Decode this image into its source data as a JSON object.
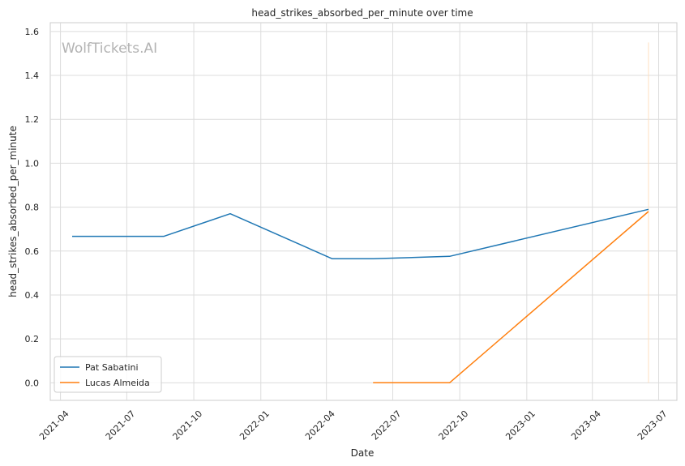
{
  "chart_data": {
    "type": "line",
    "title": "head_strikes_absorbed_per_minute over time",
    "xlabel": "Date",
    "ylabel": "head_strikes_absorbed_per_minute",
    "watermark": "WolfTickets.AI",
    "x_ticks": [
      "2021-04",
      "2021-07",
      "2021-10",
      "2022-01",
      "2022-04",
      "2022-07",
      "2022-10",
      "2023-01",
      "2023-04",
      "2023-07"
    ],
    "y_ticks": [
      0.0,
      0.2,
      0.4,
      0.6,
      0.8,
      1.0,
      1.2,
      1.4,
      1.6
    ],
    "y_tick_labels": [
      "0.0",
      "0.2",
      "0.4",
      "0.6",
      "0.8",
      "1.0",
      "1.2",
      "1.4",
      "1.6"
    ],
    "xlim": [
      "2021-03-18",
      "2023-07-26"
    ],
    "ylim": [
      -0.08,
      1.64
    ],
    "grid": true,
    "legend_position": "lower-left",
    "series": [
      {
        "name": "Pat Sabatini",
        "color": "#1f77b4",
        "x": [
          "2021-04-17",
          "2021-08-21",
          "2021-11-20",
          "2022-04-09",
          "2022-06-04",
          "2022-09-17",
          "2023-06-17"
        ],
        "y": [
          0.667,
          0.667,
          0.77,
          0.565,
          0.565,
          0.576,
          0.79
        ]
      },
      {
        "name": "Lucas Almeida",
        "color": "#ff7f0e",
        "x": [
          "2022-06-04",
          "2022-09-17",
          "2023-06-17"
        ],
        "y": [
          0.0,
          0.0,
          0.78
        ]
      }
    ],
    "annotations": [
      {
        "type": "vertical-line",
        "x": "2023-06-17",
        "y": [
          0.0,
          1.55
        ],
        "color": "#ffe0bf"
      }
    ]
  }
}
